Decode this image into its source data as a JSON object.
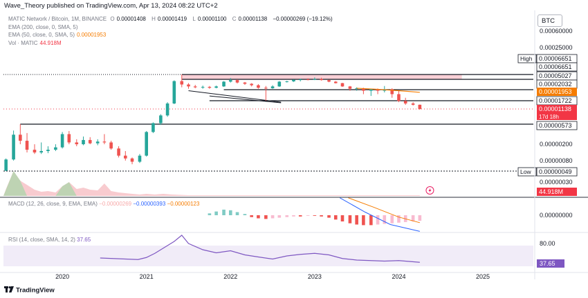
{
  "publisher": "Wave_Theory published on TradingView.com, Apr 13, 2024 08:22 UTC+2",
  "legend": {
    "symbol": "MATIC Network / Bitcoin, 1M, BINANCE",
    "ohlc": [
      {
        "k": "O",
        "v": "0.00001408"
      },
      {
        "k": "H",
        "v": "0.00001419"
      },
      {
        "k": "L",
        "v": "0.00001100"
      },
      {
        "k": "C",
        "v": "0.00001138"
      }
    ],
    "change": "−0.00000269 (−19.12%)",
    "ema200": "EMA (200, close, 0, SMA, 5)",
    "ema50": "EMA (50, close, 0, SMA, 5)",
    "ema50_value": "0.00001953",
    "vol": "Vol · MATIC",
    "vol_value": "44.918M"
  },
  "symbol_button": "BTC",
  "macd_legend": {
    "label": "MACD (12, 26, close, 9, EMA, EMA)",
    "hist": "−0.00000269",
    "macd": "−0.00000393",
    "signal": "−0.00000123"
  },
  "rsi_legend": {
    "label": "RSI (14, close, SMA, 14, 2)",
    "value": "37.65"
  },
  "footer": "TradingView",
  "colors": {
    "up": "#26a69a",
    "down": "#ef5350",
    "ema50": "#f57c00",
    "macd": "#2962ff",
    "rsi": "#7e57c2",
    "grid": "#e0e3eb",
    "text": "#131722"
  },
  "chart_data": [
    {
      "type": "candlestick",
      "title": "MATIC Network / Bitcoin, 1M, BINANCE",
      "y_scale": "log",
      "y_ticks": [
        "0.00060000",
        "0.00025000",
        "0.00000200",
        "0.00000080",
        "0.00000030"
      ],
      "x_ticks": [
        "2020",
        "2021",
        "2022",
        "2023",
        "2024",
        "2025"
      ],
      "x_range": [
        2019.3,
        2025.6
      ],
      "candles": [
        {
          "t": 2019.33,
          "o": 5e-07,
          "h": 9.5e-07,
          "l": 4.9e-07,
          "c": 9e-07
        },
        {
          "t": 2019.42,
          "o": 9e-07,
          "h": 4.1e-06,
          "l": 8.5e-07,
          "c": 3.3e-06
        },
        {
          "t": 2019.5,
          "o": 3.3e-06,
          "h": 5.73e-06,
          "l": 2e-06,
          "c": 2.4e-06
        },
        {
          "t": 2019.58,
          "o": 2.4e-06,
          "h": 3.6e-06,
          "l": 1.3e-06,
          "c": 1.5e-06
        },
        {
          "t": 2019.67,
          "o": 1.5e-06,
          "h": 2e-06,
          "l": 1.2e-06,
          "c": 1.3e-06
        },
        {
          "t": 2019.75,
          "o": 1.3e-06,
          "h": 2.2e-06,
          "l": 1.2e-06,
          "c": 1.4e-06
        },
        {
          "t": 2019.83,
          "o": 1.4e-06,
          "h": 1.8e-06,
          "l": 1.25e-06,
          "c": 1.5e-06
        },
        {
          "t": 2019.92,
          "o": 1.5e-06,
          "h": 2e-06,
          "l": 1.4e-06,
          "c": 1.7e-06
        },
        {
          "t": 2020.0,
          "o": 1.7e-06,
          "h": 3.8e-06,
          "l": 1.6e-06,
          "c": 3.4e-06
        },
        {
          "t": 2020.08,
          "o": 3.4e-06,
          "h": 4e-06,
          "l": 2e-06,
          "c": 2.2e-06
        },
        {
          "t": 2020.17,
          "o": 2.2e-06,
          "h": 2.6e-06,
          "l": 1.8e-06,
          "c": 2e-06
        },
        {
          "t": 2020.25,
          "o": 2e-06,
          "h": 3e-06,
          "l": 1.9e-06,
          "c": 2.5e-06
        },
        {
          "t": 2020.33,
          "o": 2.5e-06,
          "h": 2.9e-06,
          "l": 2e-06,
          "c": 2.1e-06
        },
        {
          "t": 2020.42,
          "o": 2.1e-06,
          "h": 2.6e-06,
          "l": 1.9e-06,
          "c": 2.3e-06
        },
        {
          "t": 2020.5,
          "o": 2.3e-06,
          "h": 3.4e-06,
          "l": 2e-06,
          "c": 2.2e-06
        },
        {
          "t": 2020.58,
          "o": 2.2e-06,
          "h": 2.4e-06,
          "l": 1.5e-06,
          "c": 1.6e-06
        },
        {
          "t": 2020.67,
          "o": 1.6e-06,
          "h": 1.8e-06,
          "l": 1e-06,
          "c": 1.1e-06
        },
        {
          "t": 2020.75,
          "o": 1.1e-06,
          "h": 1.4e-06,
          "l": 8.5e-07,
          "c": 9.5e-07
        },
        {
          "t": 2020.83,
          "o": 9.5e-07,
          "h": 1e-06,
          "l": 7e-07,
          "c": 8e-07
        },
        {
          "t": 2020.92,
          "o": 8e-07,
          "h": 1.2e-06,
          "l": 7.5e-07,
          "c": 1.1e-06
        },
        {
          "t": 2021.0,
          "o": 1.1e-06,
          "h": 4e-06,
          "l": 1.05e-06,
          "c": 3.8e-06
        },
        {
          "t": 2021.08,
          "o": 3.8e-06,
          "h": 6.2e-06,
          "l": 3.6e-06,
          "c": 6e-06
        },
        {
          "t": 2021.17,
          "o": 6e-06,
          "h": 9e-06,
          "l": 5.5e-06,
          "c": 8.5e-06
        },
        {
          "t": 2021.25,
          "o": 8.5e-06,
          "h": 1.6e-05,
          "l": 8e-06,
          "c": 1.5e-05
        },
        {
          "t": 2021.33,
          "o": 1.5e-05,
          "h": 4.6e-05,
          "l": 1.45e-05,
          "c": 4.3e-05
        },
        {
          "t": 2021.42,
          "o": 4.3e-05,
          "h": 6.651e-05,
          "l": 2.5e-05,
          "c": 3.2e-05
        },
        {
          "t": 2021.5,
          "o": 3.2e-05,
          "h": 3.6e-05,
          "l": 2.2e-05,
          "c": 2.7e-05
        },
        {
          "t": 2021.58,
          "o": 2.7e-05,
          "h": 3.1e-05,
          "l": 2.3e-05,
          "c": 2.5e-05
        },
        {
          "t": 2021.67,
          "o": 2.5e-05,
          "h": 2.9e-05,
          "l": 2.2e-05,
          "c": 2.6e-05
        },
        {
          "t": 2021.75,
          "o": 2.6e-05,
          "h": 2.8e-05,
          "l": 2.2e-05,
          "c": 2.4e-05
        },
        {
          "t": 2021.83,
          "o": 2.4e-05,
          "h": 2.9e-05,
          "l": 2.3e-05,
          "c": 2.7e-05
        },
        {
          "t": 2021.92,
          "o": 2.7e-05,
          "h": 4.3e-05,
          "l": 2.6e-05,
          "c": 4.1e-05
        },
        {
          "t": 2022.0,
          "o": 4.1e-05,
          "h": 5.4e-05,
          "l": 3.8e-05,
          "c": 4.7e-05
        },
        {
          "t": 2022.08,
          "o": 4.7e-05,
          "h": 5e-05,
          "l": 3.5e-05,
          "c": 3.8e-05
        },
        {
          "t": 2022.17,
          "o": 3.8e-05,
          "h": 4e-05,
          "l": 3.1e-05,
          "c": 3.4e-05
        },
        {
          "t": 2022.25,
          "o": 3.4e-05,
          "h": 3.6e-05,
          "l": 2.7e-05,
          "c": 3e-05
        },
        {
          "t": 2022.33,
          "o": 3e-05,
          "h": 3.3e-05,
          "l": 2.2e-05,
          "c": 2.4e-05
        },
        {
          "t": 2022.42,
          "o": 2.4e-05,
          "h": 2.8e-05,
          "l": 1.722e-05,
          "c": 2.3e-05
        },
        {
          "t": 2022.5,
          "o": 2.3e-05,
          "h": 3e-05,
          "l": 2.2e-05,
          "c": 2.7e-05
        },
        {
          "t": 2022.58,
          "o": 2.7e-05,
          "h": 4.3e-05,
          "l": 2.6e-05,
          "c": 4.1e-05
        },
        {
          "t": 2022.67,
          "o": 4.1e-05,
          "h": 4.4e-05,
          "l": 3.8e-05,
          "c": 4.2e-05
        },
        {
          "t": 2022.75,
          "o": 4.2e-05,
          "h": 5e-05,
          "l": 4e-05,
          "c": 4.8e-05
        },
        {
          "t": 2022.83,
          "o": 4.8e-05,
          "h": 5.2e-05,
          "l": 4.2e-05,
          "c": 5e-05
        },
        {
          "t": 2022.92,
          "o": 5e-05,
          "h": 5.3e-05,
          "l": 4.6e-05,
          "c": 4.8e-05
        },
        {
          "t": 2023.0,
          "o": 4.8e-05,
          "h": 5.6e-05,
          "l": 4.7e-05,
          "c": 5.1e-05
        },
        {
          "t": 2023.08,
          "o": 5.1e-05,
          "h": 5.5e-05,
          "l": 4.5e-05,
          "c": 4.7e-05
        },
        {
          "t": 2023.17,
          "o": 4.7e-05,
          "h": 4.9e-05,
          "l": 3.9e-05,
          "c": 4.1e-05
        },
        {
          "t": 2023.25,
          "o": 4.1e-05,
          "h": 4.3e-05,
          "l": 3.5e-05,
          "c": 3.6e-05
        },
        {
          "t": 2023.33,
          "o": 3.6e-05,
          "h": 3.7e-05,
          "l": 2.6e-05,
          "c": 2.7e-05
        },
        {
          "t": 2023.42,
          "o": 2.7e-05,
          "h": 2.8e-05,
          "l": 2e-05,
          "c": 2.2e-05
        },
        {
          "t": 2023.5,
          "o": 2.2e-05,
          "h": 2.5e-05,
          "l": 2e-05,
          "c": 2.3e-05
        },
        {
          "t": 2023.58,
          "o": 2.3e-05,
          "h": 2.4e-05,
          "l": 1.9e-05,
          "c": 2e-05
        },
        {
          "t": 2023.67,
          "o": 2e-05,
          "h": 2.2e-05,
          "l": 1.85e-05,
          "c": 2.1e-05
        },
        {
          "t": 2023.75,
          "o": 2.1e-05,
          "h": 2.25e-05,
          "l": 1.9e-05,
          "c": 2e-05
        },
        {
          "t": 2023.83,
          "o": 2e-05,
          "h": 2.8e-05,
          "l": 1.95e-05,
          "c": 2.1e-05
        },
        {
          "t": 2023.92,
          "o": 2.1e-05,
          "h": 2.3e-05,
          "l": 1.8e-05,
          "c": 1.9e-05
        },
        {
          "t": 2024.0,
          "o": 1.9e-05,
          "h": 2e-05,
          "l": 1.6e-05,
          "c": 1.7e-05
        },
        {
          "t": 2024.08,
          "o": 1.7e-05,
          "h": 1.8e-05,
          "l": 1.4e-05,
          "c": 1.5e-05
        },
        {
          "t": 2024.17,
          "o": 1.5e-05,
          "h": 1.6e-05,
          "l": 1.35e-05,
          "c": 1.408e-05
        },
        {
          "t": 2024.25,
          "o": 1.408e-05,
          "h": 1.419e-05,
          "l": 1.1e-05,
          "c": 1.138e-05
        }
      ],
      "ema50": [
        [
          2023.5,
          2.3e-05
        ],
        [
          2023.75,
          2.1e-05
        ],
        [
          2024.0,
          2e-05
        ],
        [
          2024.25,
          1.953e-05
        ]
      ],
      "horizontal_levels": [
        {
          "value": 6.651e-05,
          "label": "0.00006651"
        },
        {
          "value": 5.027e-05,
          "label": "0.00005027"
        },
        {
          "value": 2.032e-05,
          "label": "0.00002032"
        },
        {
          "value": 1.722e-05,
          "label": "0.00001722"
        },
        {
          "value": 5.73e-06,
          "label": "0.00000573"
        },
        {
          "value": 4.9e-07,
          "label": "0.00000049"
        }
      ],
      "price_labels": [
        {
          "kind": "high",
          "tag": "High",
          "value": "0.00006651"
        },
        {
          "kind": "level",
          "value": "0.00006651"
        },
        {
          "kind": "level",
          "value": "0.00005027"
        },
        {
          "kind": "level",
          "value": "0.00002032"
        },
        {
          "kind": "ema",
          "value": "0.00001953"
        },
        {
          "kind": "level",
          "value": "0.00001722"
        },
        {
          "kind": "last",
          "value": "0.00001138",
          "sub": "17d 18h"
        },
        {
          "kind": "level",
          "value": "0.00000573"
        },
        {
          "kind": "low",
          "tag": "Low",
          "value": "0.00000049"
        },
        {
          "kind": "volume",
          "value": "44.918M"
        }
      ],
      "resistance_zone": [
        5.027e-05,
        6.651e-05
      ]
    },
    {
      "type": "bar",
      "title": "MACD (12, 26, close, 9, EMA, EMA)",
      "y_ticks": [
        "0.00000000"
      ],
      "x": [
        2021.75,
        2021.83,
        2021.92,
        2022.0,
        2022.08,
        2022.17,
        2022.25,
        2022.33,
        2022.42,
        2022.5,
        2022.58,
        2022.67,
        2022.75,
        2022.83,
        2022.92,
        2023.0,
        2023.08,
        2023.17,
        2023.25,
        2023.33,
        2023.42,
        2023.5,
        2023.58,
        2023.67,
        2023.75,
        2023.83,
        2023.92,
        2024.0,
        2024.08,
        2024.17,
        2024.25
      ],
      "histogram": [
        0.3,
        0.6,
        0.9,
        0.8,
        0.5,
        0.2,
        -0.3,
        -0.5,
        -0.6,
        -0.5,
        -0.4,
        -0.3,
        -0.2,
        -0.2,
        -0.1,
        -0.1,
        -0.2,
        -0.4,
        -0.7,
        -1.0,
        -1.3,
        -1.5,
        -1.6,
        -1.6,
        -1.5,
        -1.4,
        -1.3,
        -1.2,
        -1.1,
        -1.0,
        -0.9
      ],
      "macd_line": [
        [
          2023.3,
          2.8
        ],
        [
          2023.6,
          0.5
        ],
        [
          2023.9,
          -1.5
        ],
        [
          2024.25,
          -2.6
        ]
      ],
      "signal_line": [
        [
          2023.4,
          2.8
        ],
        [
          2023.7,
          1.3
        ],
        [
          2024.0,
          -0.3
        ],
        [
          2024.25,
          -1.2
        ]
      ]
    },
    {
      "type": "line",
      "title": "RSI (14, close, SMA, 14, 2)",
      "y_ticks": [
        "80.00"
      ],
      "last": "37.65",
      "x": [
        2020.45,
        2020.6,
        2020.75,
        2020.9,
        2021.0,
        2021.1,
        2021.2,
        2021.33,
        2021.42,
        2021.5,
        2021.67,
        2021.83,
        2022.0,
        2022.17,
        2022.33,
        2022.5,
        2022.67,
        2022.83,
        2023.0,
        2023.17,
        2023.33,
        2023.5,
        2023.67,
        2023.83,
        2024.0,
        2024.25
      ],
      "values": [
        46,
        45,
        44,
        43,
        47,
        55,
        65,
        78,
        90,
        74,
        62,
        56,
        60,
        52,
        48,
        44,
        50,
        53,
        55,
        52,
        45,
        42,
        41,
        40,
        41,
        37.65
      ]
    }
  ]
}
